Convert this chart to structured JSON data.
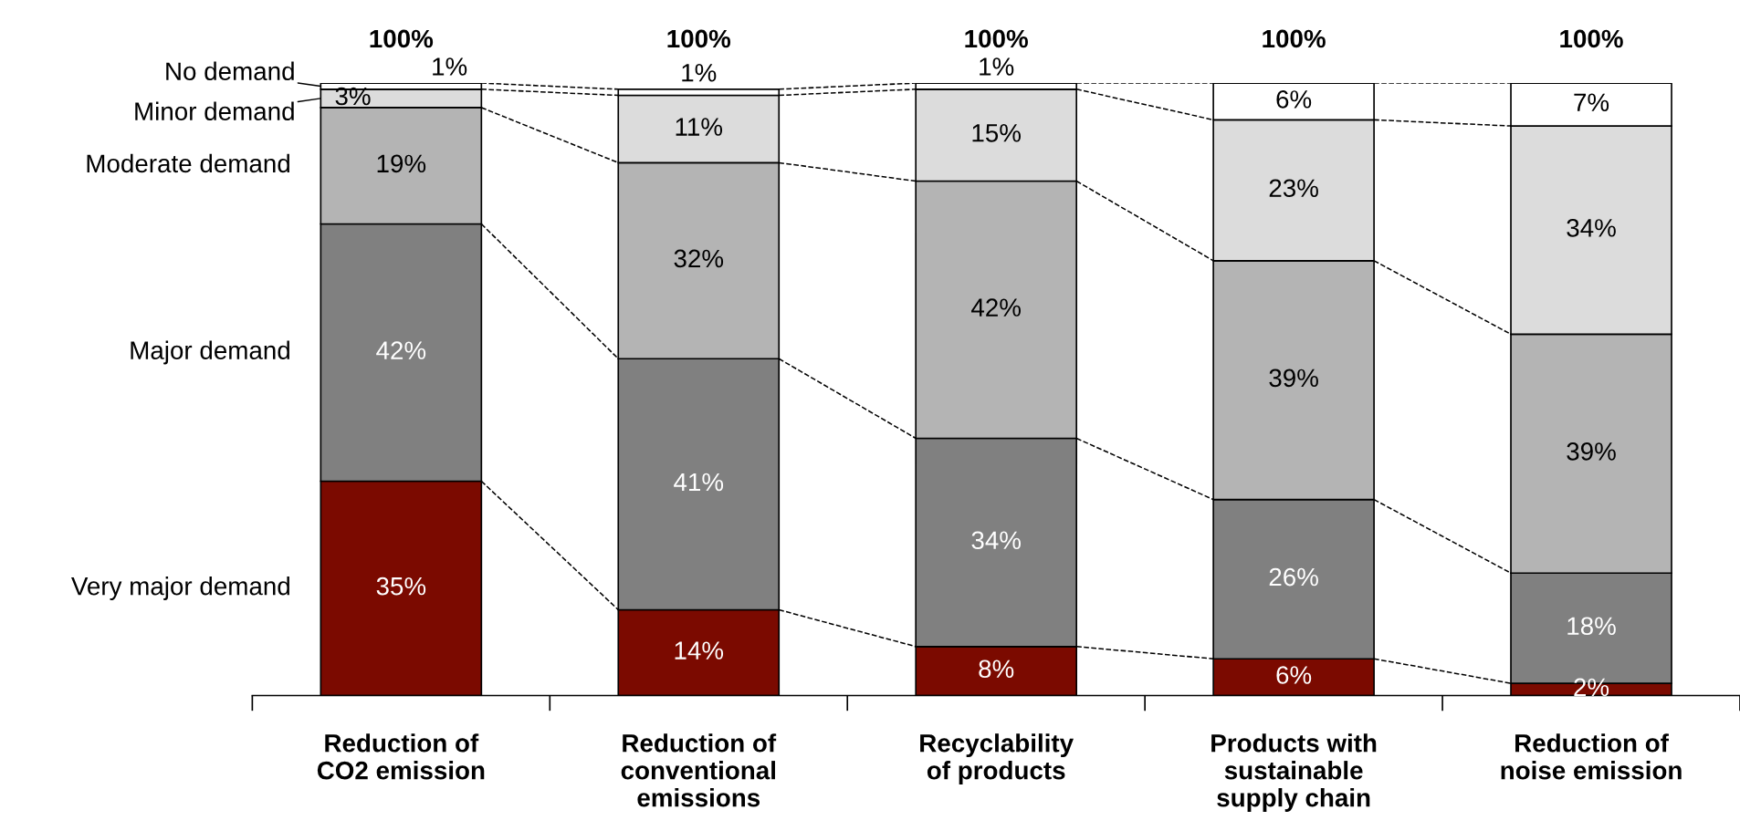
{
  "chart_data": {
    "type": "bar",
    "stacked": true,
    "categories": [
      "Reduction of\nCO2 emission",
      "Reduction of\nconventional\nemissions",
      "Recyclability\nof products",
      "Products with\nsustainable\nsupply chain",
      "Reduction of\nnoise emission"
    ],
    "series": [
      {
        "name": "Very major demand",
        "color": "#7b0a00",
        "values": [
          35,
          14,
          8,
          6,
          2
        ],
        "value_labels": [
          "35%",
          "14%",
          "8%",
          "6%",
          "2%"
        ]
      },
      {
        "name": "Major demand",
        "color": "#808080",
        "values": [
          42,
          41,
          34,
          26,
          18
        ],
        "value_labels": [
          "42%",
          "41%",
          "34%",
          "26%",
          "18%"
        ]
      },
      {
        "name": "Moderate demand",
        "color": "#b4b4b4",
        "values": [
          19,
          32,
          42,
          39,
          39
        ],
        "value_labels": [
          "19%",
          "32%",
          "42%",
          "39%",
          "39%"
        ]
      },
      {
        "name": "Minor demand",
        "color": "#dcdcdc",
        "values": [
          3,
          11,
          15,
          23,
          34
        ],
        "value_labels": [
          "3%",
          "11%",
          "15%",
          "23%",
          "34%"
        ]
      },
      {
        "name": "No demand",
        "color": "#ffffff",
        "values": [
          1,
          1,
          1,
          6,
          7
        ],
        "value_labels": [
          "1%",
          "1%",
          "1%",
          "6%",
          "7%"
        ]
      }
    ],
    "totals": [
      "100%",
      "100%",
      "100%",
      "100%",
      "100%"
    ],
    "grid": false,
    "legend": "left"
  }
}
